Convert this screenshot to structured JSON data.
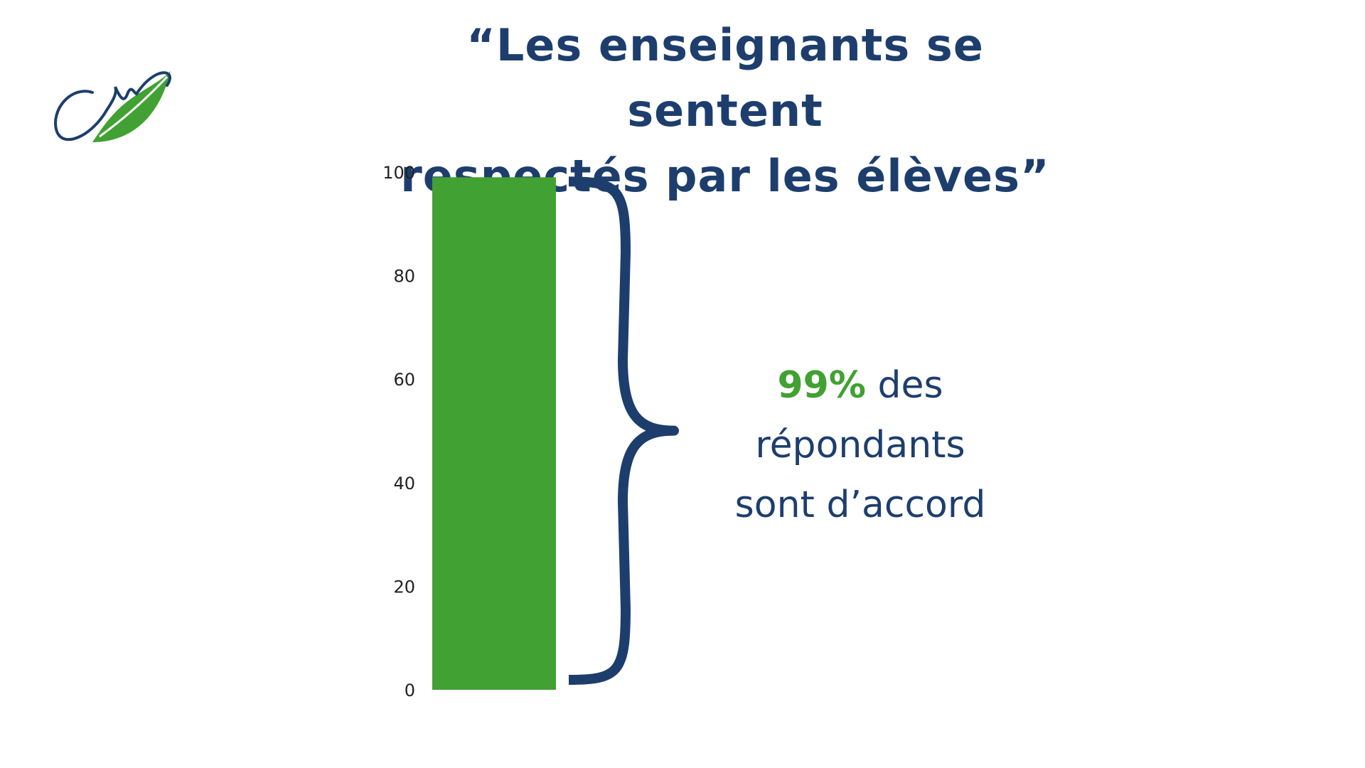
{
  "title": {
    "line1": "“Les enseignants se sentent",
    "line2": "respectés par les élèves”"
  },
  "logo": {
    "icon": "leaf-logo-icon",
    "colors": {
      "navy": "#1d3e6d",
      "green": "#41a132"
    }
  },
  "chart_data": {
    "type": "bar",
    "categories": [
      ""
    ],
    "values": [
      99
    ],
    "title": "",
    "xlabel": "",
    "ylabel": "",
    "ylim": [
      0,
      100
    ],
    "yticks": [
      "0",
      "20",
      "40",
      "60",
      "80",
      "100"
    ],
    "grid": false,
    "bar_color": "#41a132",
    "brace_color": "#1d3e6d"
  },
  "callout": {
    "percent": "99%",
    "line1_rest": " des",
    "line2": "répondants",
    "line3": "sont d’accord"
  }
}
